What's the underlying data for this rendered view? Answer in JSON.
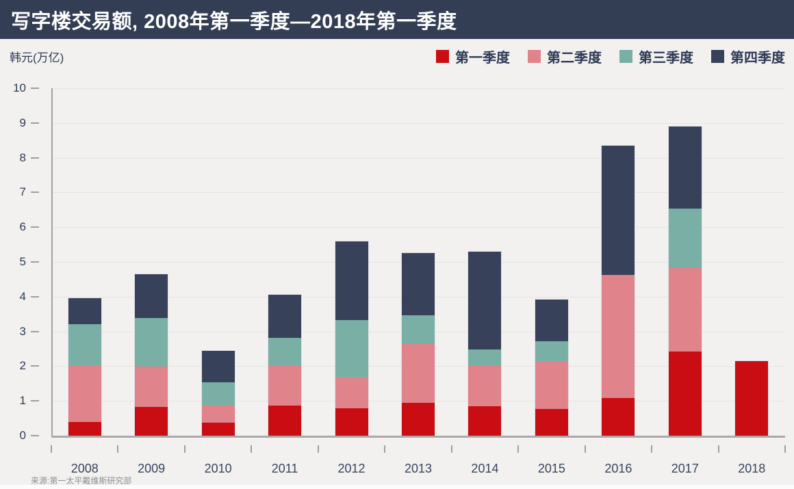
{
  "header": {
    "title": "写字楼交易额, 2008年第一季度—2018年第一季度"
  },
  "unit_label": "韩元(万亿)",
  "source": "来源:第一太平戴维斯研究部",
  "colors": {
    "header_bg": "#333e54",
    "page_bg": "#f2f1ef",
    "q1_red": "#c90d12",
    "q2_salmon": "#e0838a",
    "q3_teal": "#7aafa6",
    "q4_navy": "#374159",
    "text_navy": "#2e3a55",
    "gridline": "#e4e3e0",
    "axis_gray": "#a9a9a9"
  },
  "chart_data": {
    "type": "bar",
    "stacked": true,
    "title": "写字楼交易额, 2008年第一季度—2018年第一季度",
    "ylabel": "韩元(万亿)",
    "xlabel": "",
    "ylim": [
      0,
      10
    ],
    "yticks": [
      0,
      1,
      2,
      3,
      4,
      5,
      6,
      7,
      8,
      9,
      10
    ],
    "grid": true,
    "legend_position": "top-right",
    "categories": [
      "2008",
      "2009",
      "2010",
      "2011",
      "2012",
      "2013",
      "2014",
      "2015",
      "2016",
      "2017",
      "2018"
    ],
    "series": [
      {
        "name": "第一季度",
        "color": "#c90d12",
        "values": [
          0.4,
          0.83,
          0.38,
          0.86,
          0.78,
          0.94,
          0.84,
          0.77,
          1.09,
          2.42,
          2.15
        ]
      },
      {
        "name": "第二季度",
        "color": "#e0838a",
        "values": [
          1.6,
          1.15,
          0.48,
          1.17,
          0.89,
          1.69,
          1.19,
          1.37,
          3.53,
          2.41,
          0
        ]
      },
      {
        "name": "第三季度",
        "color": "#7aafa6",
        "values": [
          1.2,
          1.4,
          0.68,
          0.78,
          1.66,
          0.83,
          0.45,
          0.57,
          0.0,
          1.7,
          0
        ]
      },
      {
        "name": "第四季度",
        "color": "#374159",
        "values": [
          0.75,
          1.27,
          0.91,
          1.24,
          2.27,
          1.79,
          2.81,
          1.2,
          3.72,
          2.37,
          0
        ]
      }
    ],
    "totals": [
      3.95,
      4.65,
      2.45,
      4.05,
      5.6,
      5.25,
      5.29,
      3.91,
      8.34,
      8.9,
      2.15
    ]
  }
}
